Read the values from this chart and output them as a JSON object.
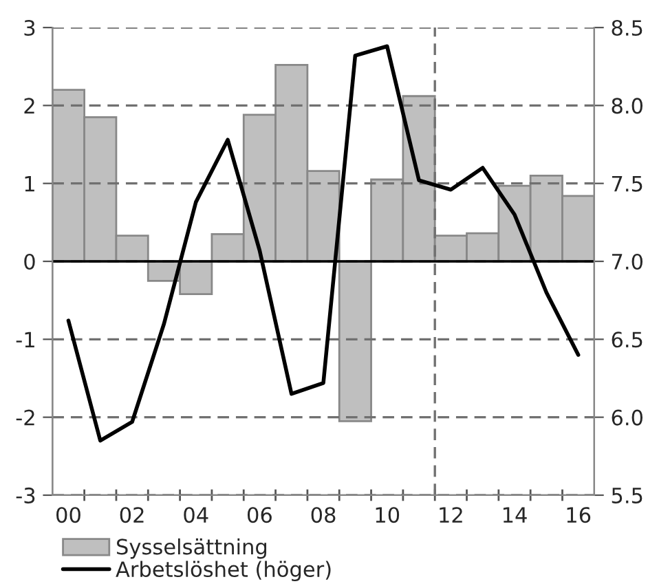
{
  "chart_data": {
    "type": "bar",
    "x": [
      2000,
      2001,
      2002,
      2003,
      2004,
      2005,
      2006,
      2007,
      2008,
      2009,
      2010,
      2011,
      2012,
      2013,
      2014,
      2015,
      2016
    ],
    "series": [
      {
        "name": "Sysselsättning",
        "color": "#bfbfbf",
        "values": [
          2.2,
          1.85,
          0.33,
          -0.25,
          -0.42,
          0.35,
          1.88,
          2.52,
          1.16,
          -2.05,
          1.05,
          2.12,
          0.33,
          0.36,
          0.97,
          1.1,
          0.84
        ]
      },
      {
        "name": "Arbetslöshet (höger)",
        "type": "line",
        "axis": "y2",
        "color": "#000000",
        "values": [
          6.62,
          5.85,
          5.97,
          6.6,
          7.38,
          7.78,
          7.07,
          6.15,
          6.22,
          8.32,
          8.38,
          7.52,
          7.46,
          7.6,
          7.3,
          6.8,
          6.4
        ]
      }
    ],
    "xlim": [
      1999.5,
      2016.5
    ],
    "xticks": [
      {
        "value": 2000,
        "label": "00"
      },
      {
        "value": 2002,
        "label": "02"
      },
      {
        "value": 2004,
        "label": "04"
      },
      {
        "value": 2006,
        "label": "06"
      },
      {
        "value": 2008,
        "label": "08"
      },
      {
        "value": 2010,
        "label": "10"
      },
      {
        "value": 2012,
        "label": "12"
      },
      {
        "value": 2014,
        "label": "14"
      },
      {
        "value": 2016,
        "label": "16"
      },
      {
        "value": 2000.5,
        "label": null
      },
      {
        "value": 2001.5,
        "label": null
      },
      {
        "value": 2002.5,
        "label": null
      },
      {
        "value": 2003.5,
        "label": null
      },
      {
        "value": 2004.5,
        "label": null
      },
      {
        "value": 2005.5,
        "label": null
      },
      {
        "value": 2006.5,
        "label": null
      },
      {
        "value": 2007.5,
        "label": null
      },
      {
        "value": 2008.5,
        "label": null
      },
      {
        "value": 2009.5,
        "label": null
      },
      {
        "value": 2010.5,
        "label": null
      },
      {
        "value": 2011.5,
        "label": null
      },
      {
        "value": 2012.5,
        "label": null
      },
      {
        "value": 2013.5,
        "label": null
      },
      {
        "value": 2014.5,
        "label": null
      },
      {
        "value": 2015.5,
        "label": null
      }
    ],
    "ylim": [
      -3,
      3
    ],
    "yticks": [
      -3,
      -2,
      -1,
      0,
      1,
      2,
      3
    ],
    "y2lim": [
      5.5,
      8.5
    ],
    "y2ticks": [
      {
        "value": 5.5,
        "label": "5.5"
      },
      {
        "value": 6,
        "label": "6.0"
      },
      {
        "value": 6.5,
        "label": "6.5"
      },
      {
        "value": 7,
        "label": "7.0"
      },
      {
        "value": 7.5,
        "label": "7.5"
      },
      {
        "value": 8,
        "label": "8.0"
      },
      {
        "value": 8.5,
        "label": "8.5"
      }
    ],
    "ref_lines": [
      {
        "axis": "x",
        "value": 2011.5,
        "color": "#707070",
        "line_style": "dashed"
      },
      {
        "axis": "y",
        "value": 0,
        "color": "#000000",
        "line_style": "solid"
      }
    ],
    "grid": "y",
    "legend": "bottom",
    "line_style": "solid",
    "marker": "none"
  }
}
